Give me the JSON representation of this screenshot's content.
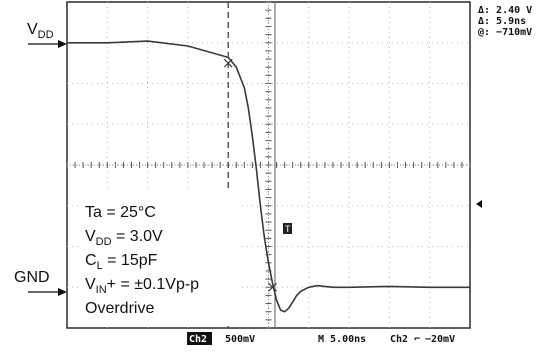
{
  "chart_data": {
    "type": "line",
    "title": "",
    "xlabel": "",
    "ylabel": "",
    "rail_labels": {
      "high": "V",
      "high_sub": "DD",
      "low": "GND"
    },
    "conditions": {
      "ta": "Ta = 25°C",
      "vdd_pre": "V",
      "vdd_sub": "DD",
      "vdd_post": " = 3.0V",
      "cl_pre": "C",
      "cl_sub": "L",
      "cl_post": " = 15pF",
      "vin_pre": "V",
      "vin_sub": "IN",
      "vin_post": "+ = ±0.1Vp-p",
      "overdrive": "Overdrive"
    },
    "readout": {
      "line1": "Δ: 2.40 V",
      "line2": "Δ: 5.9ns",
      "line3": "@: −710mV"
    },
    "status": {
      "channel": "Ch2",
      "volts_div": "500mV",
      "time_div": "M 5.00ns",
      "trigger": "Ch2 ⌐",
      "trigger_level": "−20mV"
    },
    "trigger_marker": "T",
    "x_unit": "ns",
    "y_unit": "V",
    "xlim": [
      -25,
      25
    ],
    "ylim": [
      -0.5,
      3.5
    ],
    "series": [
      {
        "x": [
          -25,
          -20,
          -15,
          -10,
          -5,
          -4,
          -3,
          -2.5,
          -2,
          -1.5,
          -1,
          -0.5,
          0,
          0.5,
          1,
          1.5,
          2,
          2.5,
          3,
          3.5,
          4,
          5,
          6,
          8,
          10,
          15,
          20,
          25
        ],
        "y": [
          3.0,
          3.0,
          3.02,
          2.96,
          2.82,
          2.7,
          2.45,
          2.2,
          1.85,
          1.45,
          1.0,
          0.6,
          0.3,
          0.05,
          -0.16,
          -0.28,
          -0.3,
          -0.26,
          -0.18,
          -0.1,
          -0.05,
          0.0,
          0.02,
          0.0,
          0.0,
          0.01,
          0.0,
          0.0
        ]
      }
    ],
    "cursors": {
      "x": [
        -5,
        0.8
      ],
      "y": [
        2.4,
        0.0
      ],
      "markers": [
        [
          -5,
          2.75
        ],
        [
          0.5,
          0.0
        ]
      ]
    }
  }
}
